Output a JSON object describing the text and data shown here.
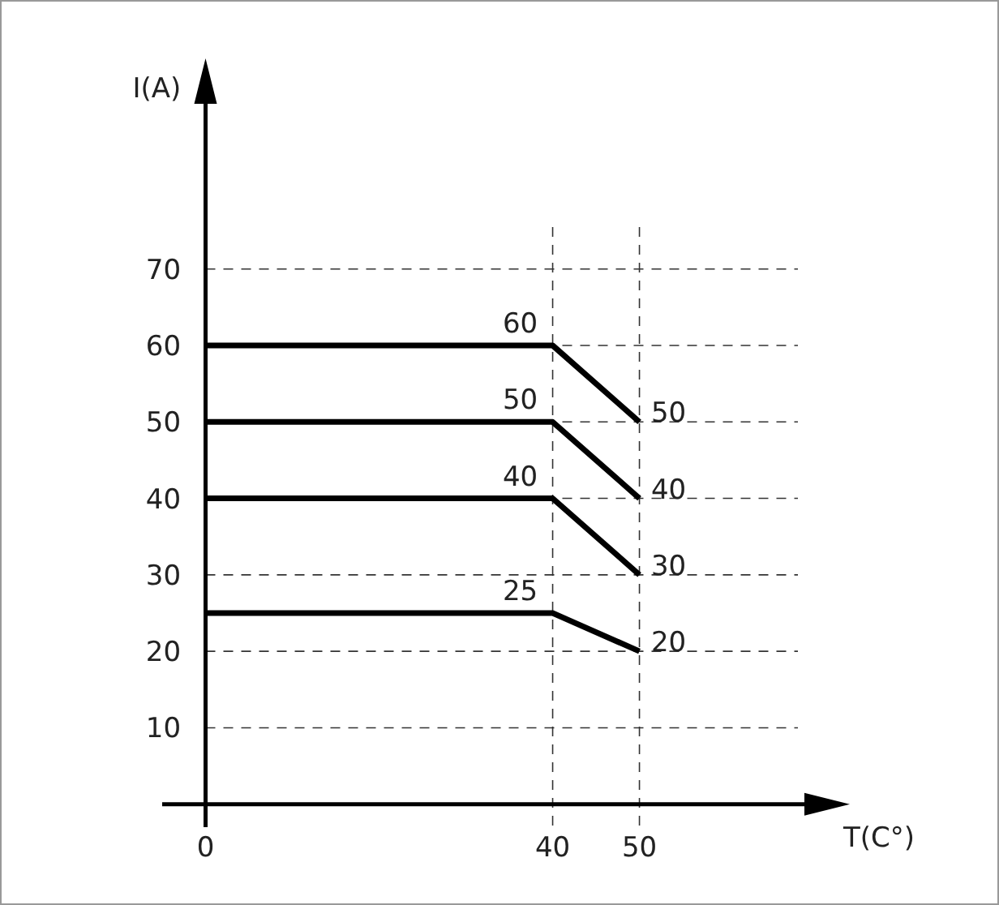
{
  "chart_data": {
    "type": "line",
    "xlabel": "T(C°)",
    "ylabel": "I(A)",
    "x": [
      0,
      40,
      50
    ],
    "series": [
      {
        "color": "#000000",
        "values": [
          60,
          60,
          50
        ],
        "value_labels": [
          null,
          "60",
          "50"
        ]
      },
      {
        "color": "#000000",
        "values": [
          50,
          50,
          40
        ],
        "value_labels": [
          null,
          "50",
          "40"
        ]
      },
      {
        "color": "#000000",
        "values": [
          40,
          40,
          30
        ],
        "value_labels": [
          null,
          "40",
          "30"
        ]
      },
      {
        "color": "#000000",
        "values": [
          25,
          25,
          20
        ],
        "value_labels": [
          null,
          "25",
          "20"
        ]
      }
    ],
    "xlim": [
      -5,
      72
    ],
    "ylim": [
      -3,
      95
    ],
    "xticks": [
      0,
      40,
      50
    ],
    "yticks": [
      10,
      20,
      30,
      40,
      50,
      60,
      70
    ],
    "grid": true,
    "marker": "none",
    "line_style": "solid"
  }
}
